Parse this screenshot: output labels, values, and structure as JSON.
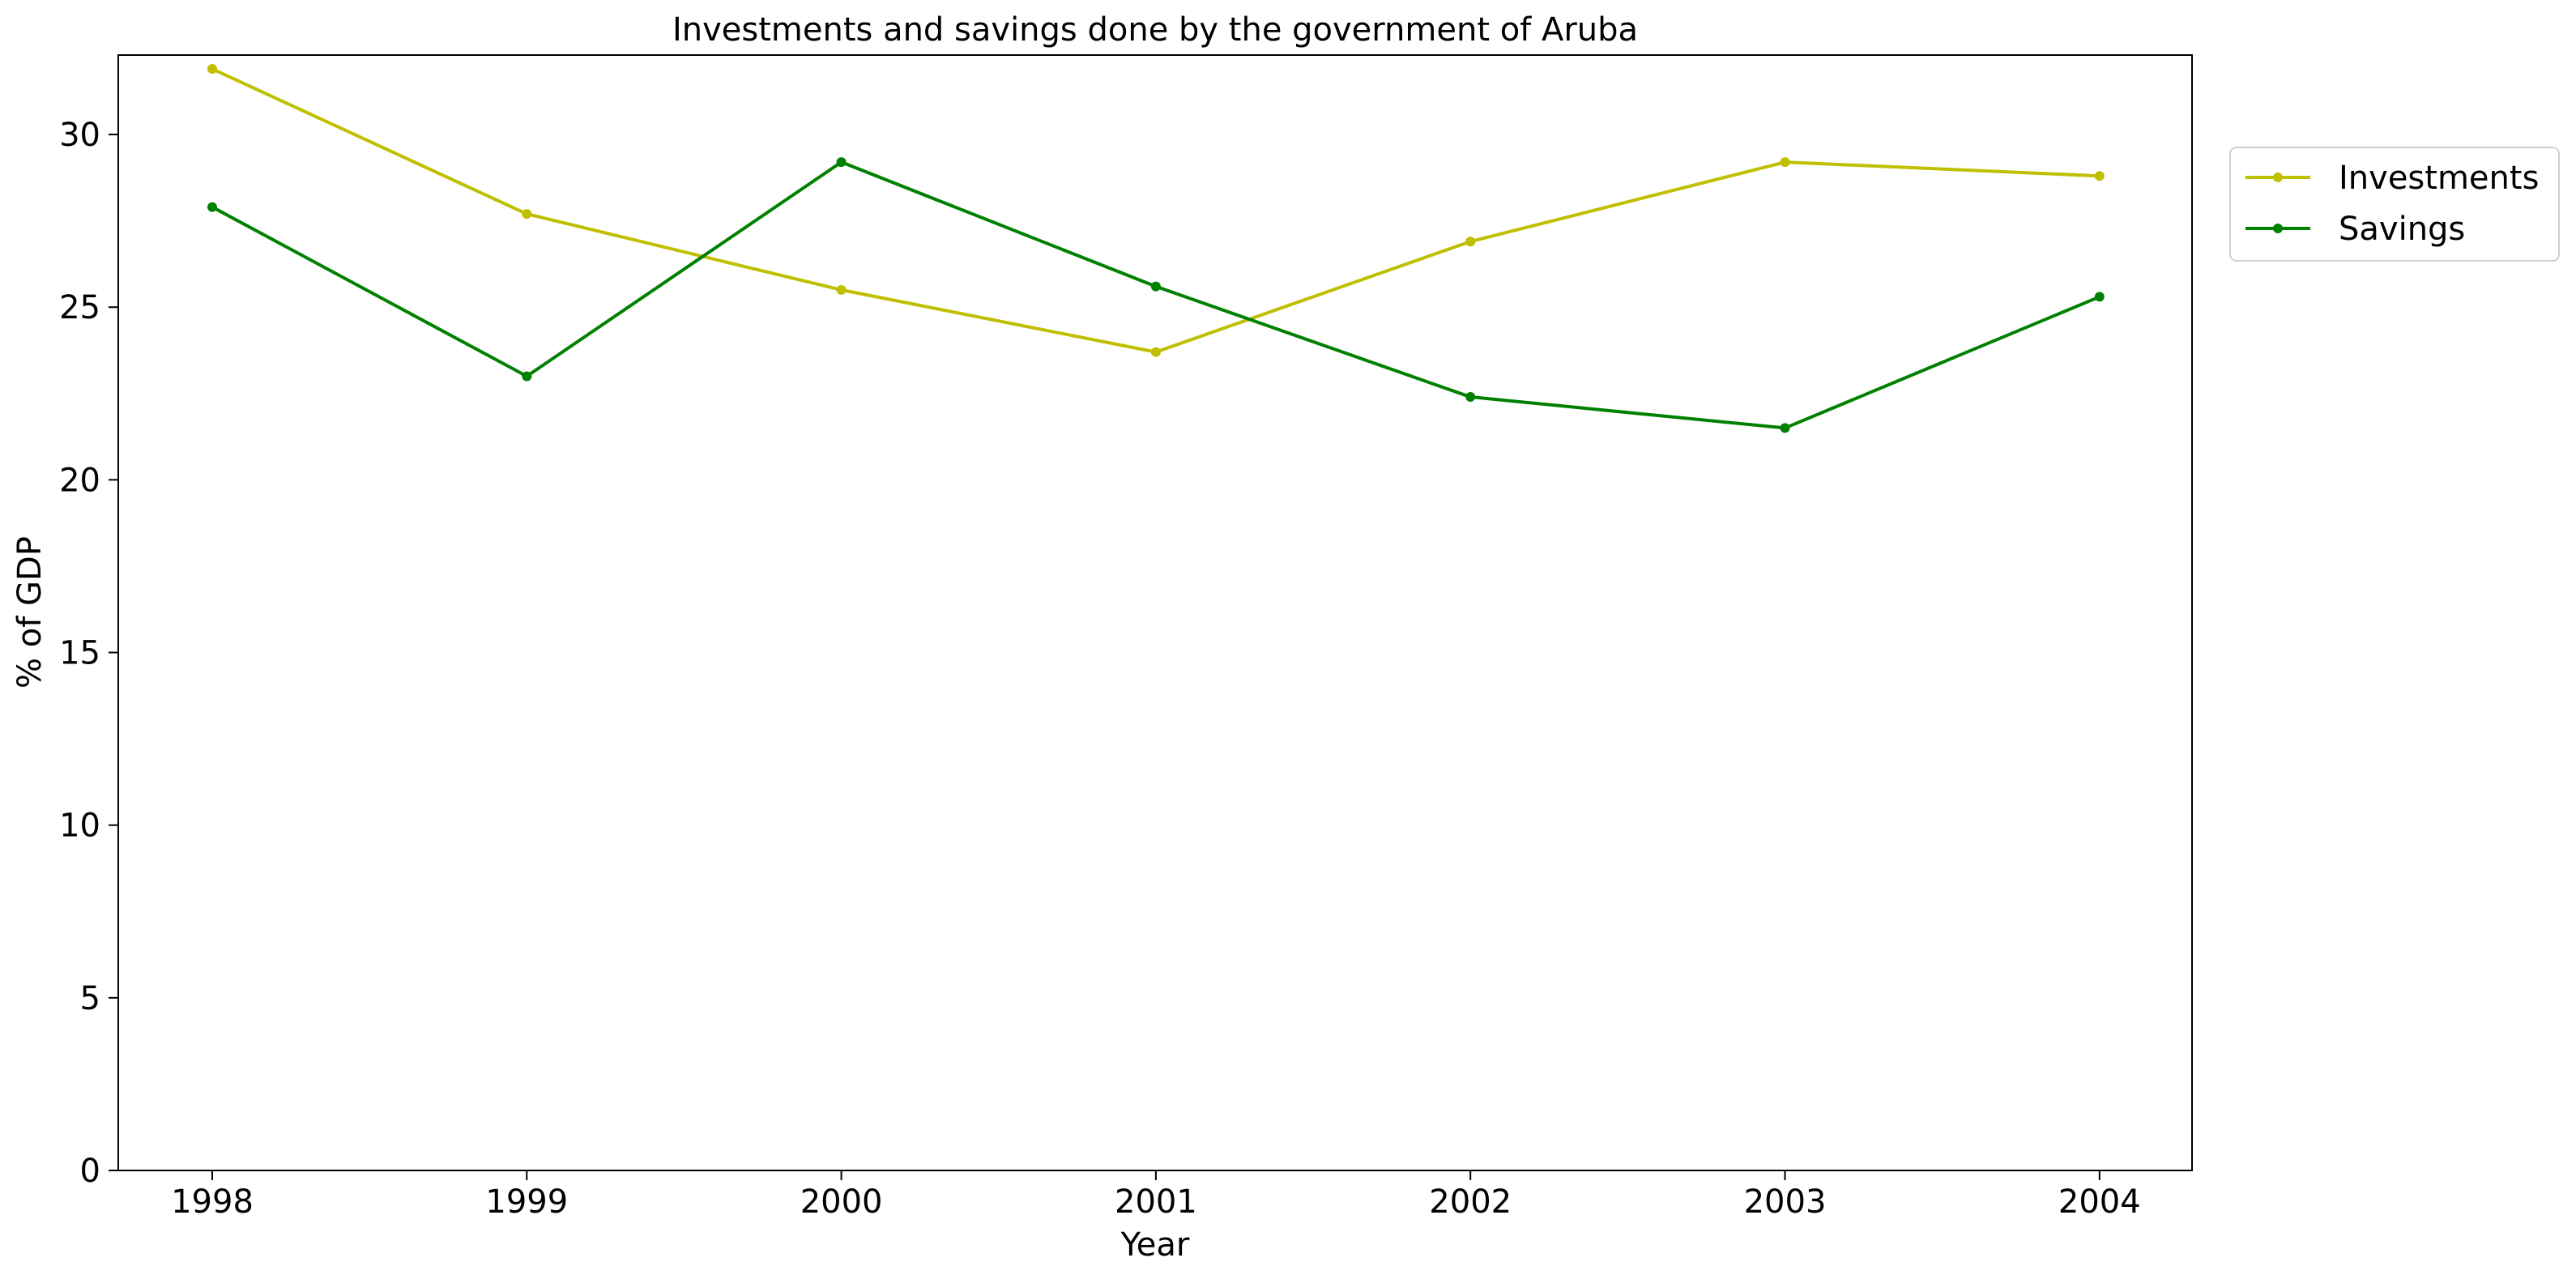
{
  "chart_data": {
    "type": "line",
    "title": "Investments and savings done by the government of Aruba",
    "xlabel": "Year",
    "ylabel": "% of GDP",
    "x": [
      "1998",
      "1999",
      "2000",
      "2001",
      "2002",
      "2003",
      "2004"
    ],
    "ylim": [
      0,
      32.3
    ],
    "yticks": [
      0,
      5,
      10,
      15,
      20,
      25,
      30
    ],
    "grid": false,
    "legend_position": "outside-top-right",
    "series": [
      {
        "name": "Investments",
        "color": "#bfbf00",
        "values": [
          31.9,
          27.7,
          25.5,
          23.7,
          26.9,
          29.2,
          28.8
        ]
      },
      {
        "name": "Savings",
        "color": "#008000",
        "values": [
          27.9,
          23.0,
          29.2,
          25.6,
          22.4,
          21.5,
          25.3
        ]
      }
    ]
  }
}
